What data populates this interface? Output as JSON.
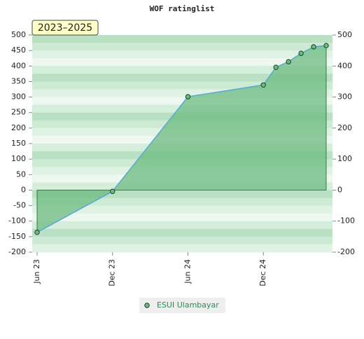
{
  "chart_data": {
    "type": "area",
    "title": "WOF ratinglist",
    "annotation": "2023–2025",
    "x": [
      "2023-06",
      "2023-12",
      "2024-06",
      "2024-12",
      "2025-01",
      "2025-02",
      "2025-03",
      "2025-04",
      "2025-05"
    ],
    "xlim": [
      "2023-06",
      "2025-05"
    ],
    "xticks": [
      {
        "value": "2023-06",
        "label": "Jun 23"
      },
      {
        "value": "2023-12",
        "label": "Dec 23"
      },
      {
        "value": "2024-06",
        "label": "Jun 24"
      },
      {
        "value": "2024-12",
        "label": "Dec 24"
      }
    ],
    "series": [
      {
        "name": "ESUI Ulambayar",
        "color": "#5aa9d6",
        "fill": "#6dbb82",
        "values": [
          -136,
          -4,
          301,
          339,
          396,
          414,
          441,
          462,
          466
        ]
      }
    ],
    "ylim": [
      -200,
      500
    ],
    "yticks": [
      -200,
      -150,
      -100,
      -50,
      0,
      50,
      100,
      150,
      200,
      250,
      300,
      350,
      400,
      450,
      500
    ],
    "y2lim": [
      -200,
      500
    ],
    "y2ticks": [
      -200,
      -100,
      0,
      100,
      200,
      300,
      400,
      500
    ],
    "grid": true
  }
}
